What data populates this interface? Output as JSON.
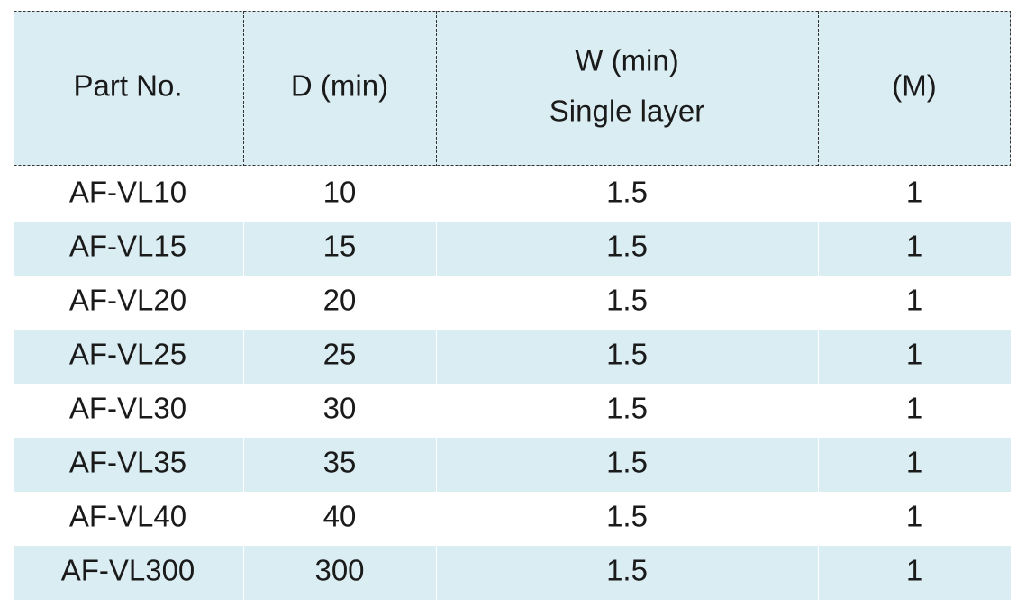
{
  "header": [
    [
      "Part No."
    ],
    [
      "D (min)"
    ],
    [
      "W (min)",
      "Single layer"
    ],
    [
      "(M)"
    ]
  ],
  "rows": [
    [
      "AF-VL10",
      10,
      1.5,
      1
    ],
    [
      "AF-VL15",
      15,
      1.5,
      1
    ],
    [
      "AF-VL20",
      20,
      1.5,
      1
    ],
    [
      "AF-VL25",
      25,
      1.5,
      1
    ],
    [
      "AF-VL30",
      30,
      1.5,
      1
    ],
    [
      "AF-VL35",
      35,
      1.5,
      1
    ],
    [
      "AF-VL40",
      40,
      1.5,
      1
    ],
    [
      "AF-VL300",
      300,
      1.5,
      1
    ]
  ]
}
